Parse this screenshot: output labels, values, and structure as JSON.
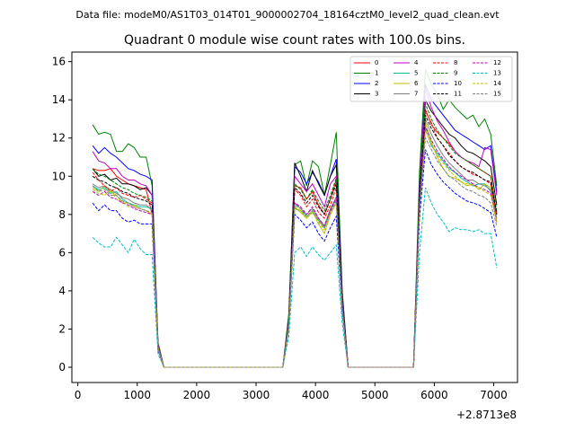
{
  "page": {
    "suptitle": "Data file: modeM0/AS1T03_014T01_9000002704_18164cztM0_level2_quad_clean.evt"
  },
  "chart_data": {
    "type": "line",
    "title": "Quadrant 0 module wise count rates with 100.0s bins.",
    "xlabel": "",
    "ylabel": "",
    "offset_label": "+2.8713e8",
    "xlim": [
      -100,
      7400
    ],
    "ylim": [
      -0.8,
      16.5
    ],
    "xticks": [
      0,
      1000,
      2000,
      3000,
      4000,
      5000,
      6000,
      7000
    ],
    "yticks": [
      0,
      2,
      4,
      6,
      8,
      10,
      12,
      14,
      16
    ],
    "legend_position": "upper-right",
    "legend_columns": 4,
    "x": [
      250,
      350,
      450,
      550,
      650,
      750,
      850,
      950,
      1050,
      1150,
      1250,
      1350,
      1450,
      1550,
      1650,
      1750,
      1850,
      1950,
      2050,
      2150,
      2250,
      2350,
      2450,
      2550,
      2650,
      2750,
      2850,
      2950,
      3050,
      3150,
      3250,
      3350,
      3450,
      3550,
      3650,
      3750,
      3850,
      3950,
      4050,
      4150,
      4250,
      4350,
      4450,
      4550,
      4650,
      4750,
      4850,
      4950,
      5050,
      5150,
      5250,
      5350,
      5450,
      5550,
      5650,
      5750,
      5850,
      5950,
      6050,
      6150,
      6250,
      6350,
      6450,
      6550,
      6650,
      6750,
      6850,
      6950,
      7050
    ],
    "series": [
      {
        "name": "0",
        "color": "#ff0000",
        "dash": "solid",
        "values": [
          10.4,
          10.3,
          10.3,
          10.4,
          10.0,
          9.8,
          9.6,
          9.5,
          9.4,
          9.3,
          8.0,
          1.0,
          0,
          0,
          0,
          0,
          0,
          0,
          0,
          0,
          0,
          0,
          0,
          0,
          0,
          0,
          0,
          0,
          0,
          0,
          0,
          0,
          0,
          2.3,
          9.5,
          9.4,
          8.8,
          9.2,
          8.5,
          8.0,
          8.8,
          9.8,
          3.5,
          0,
          0,
          0,
          0,
          0,
          0,
          0,
          0,
          0,
          0,
          0,
          0,
          9.0,
          13.5,
          12.7,
          12.3,
          12.0,
          11.7,
          11.3,
          11.0,
          10.8,
          10.6,
          10.4,
          10.2,
          10.0,
          8.0
        ]
      },
      {
        "name": "1",
        "color": "#008000",
        "dash": "solid",
        "values": [
          12.7,
          12.2,
          12.3,
          12.2,
          11.3,
          11.3,
          11.7,
          11.5,
          11.0,
          11.0,
          9.5,
          1.3,
          0,
          0,
          0,
          0,
          0,
          0,
          0,
          0,
          0,
          0,
          0,
          0,
          0,
          0,
          0,
          0,
          0,
          0,
          0,
          0,
          0,
          2.8,
          10.6,
          10.8,
          9.5,
          10.8,
          10.5,
          9.0,
          10.6,
          12.3,
          4.0,
          0,
          0,
          0,
          0,
          0,
          0,
          0,
          0,
          0,
          0,
          0,
          0,
          10.2,
          15.6,
          14.8,
          14.3,
          13.5,
          14.0,
          13.6,
          13.3,
          13.0,
          13.2,
          12.6,
          13.0,
          12.2,
          9.5
        ]
      },
      {
        "name": "2",
        "color": "#0000ff",
        "dash": "solid",
        "values": [
          11.6,
          11.2,
          11.5,
          11.2,
          11.0,
          10.7,
          10.4,
          10.3,
          10.1,
          10.0,
          9.8,
          1.2,
          0,
          0,
          0,
          0,
          0,
          0,
          0,
          0,
          0,
          0,
          0,
          0,
          0,
          0,
          0,
          0,
          0,
          0,
          0,
          0,
          0,
          2.5,
          10.5,
          10.2,
          9.6,
          10.2,
          9.7,
          9.0,
          10.0,
          10.9,
          3.9,
          0,
          0,
          0,
          0,
          0,
          0,
          0,
          0,
          0,
          0,
          0,
          0,
          9.5,
          14.8,
          14.0,
          13.6,
          13.2,
          12.8,
          12.4,
          12.2,
          12.0,
          11.8,
          11.6,
          11.4,
          11.6,
          9.2
        ]
      },
      {
        "name": "3",
        "color": "#000000",
        "dash": "solid",
        "values": [
          10.4,
          10.0,
          10.1,
          9.8,
          9.9,
          9.6,
          9.6,
          9.5,
          9.3,
          9.4,
          9.0,
          1.1,
          0,
          0,
          0,
          0,
          0,
          0,
          0,
          0,
          0,
          0,
          0,
          0,
          0,
          0,
          0,
          0,
          0,
          0,
          0,
          0,
          0,
          2.4,
          10.7,
          10.0,
          9.2,
          10.3,
          9.6,
          9.0,
          10.0,
          10.6,
          3.7,
          0,
          0,
          0,
          0,
          0,
          0,
          0,
          0,
          0,
          0,
          0,
          0,
          9.0,
          14.0,
          13.4,
          13.0,
          12.6,
          12.2,
          12.0,
          11.6,
          11.3,
          11.2,
          11.0,
          10.8,
          10.5,
          8.5
        ]
      },
      {
        "name": "4",
        "color": "#bf00bf",
        "dash": "solid",
        "values": [
          11.3,
          10.8,
          10.7,
          10.4,
          10.4,
          10.0,
          9.8,
          9.8,
          9.6,
          9.5,
          9.0,
          1.2,
          0,
          0,
          0,
          0,
          0,
          0,
          0,
          0,
          0,
          0,
          0,
          0,
          0,
          0,
          0,
          0,
          0,
          0,
          0,
          0,
          0,
          2.4,
          10.0,
          9.6,
          9.2,
          9.6,
          9.0,
          8.4,
          9.6,
          10.0,
          3.6,
          0,
          0,
          0,
          0,
          0,
          0,
          0,
          0,
          0,
          0,
          0,
          0,
          9.3,
          14.6,
          13.6,
          12.9,
          12.4,
          11.8,
          11.3,
          11.0,
          10.8,
          10.7,
          10.5,
          11.5,
          11.4,
          9.0
        ]
      },
      {
        "name": "5",
        "color": "#00bfa0",
        "dash": "solid",
        "values": [
          9.5,
          9.3,
          9.4,
          9.1,
          9.2,
          8.8,
          8.6,
          8.5,
          8.4,
          8.4,
          8.3,
          1.0,
          0,
          0,
          0,
          0,
          0,
          0,
          0,
          0,
          0,
          0,
          0,
          0,
          0,
          0,
          0,
          0,
          0,
          0,
          0,
          0,
          0,
          2.2,
          8.3,
          8.2,
          7.9,
          8.1,
          7.7,
          7.3,
          8.2,
          8.8,
          3.2,
          0,
          0,
          0,
          0,
          0,
          0,
          0,
          0,
          0,
          0,
          0,
          0,
          8.3,
          12.5,
          11.6,
          11.2,
          10.8,
          10.4,
          10.2,
          9.9,
          9.7,
          9.5,
          9.6,
          9.6,
          9.2,
          7.8
        ]
      },
      {
        "name": "6",
        "color": "#bfbf00",
        "dash": "solid",
        "values": [
          9.4,
          9.2,
          9.5,
          9.2,
          9.0,
          8.6,
          8.6,
          8.4,
          8.3,
          8.2,
          8.0,
          1.0,
          0,
          0,
          0,
          0,
          0,
          0,
          0,
          0,
          0,
          0,
          0,
          0,
          0,
          0,
          0,
          0,
          0,
          0,
          0,
          0,
          0,
          2.2,
          8.4,
          8.1,
          7.8,
          8.2,
          7.5,
          7.0,
          8.0,
          8.6,
          3.1,
          0,
          0,
          0,
          0,
          0,
          0,
          0,
          0,
          0,
          0,
          0,
          0,
          8.5,
          12.8,
          11.8,
          11.0,
          10.4,
          10.0,
          9.9,
          9.7,
          9.5,
          9.6,
          9.3,
          9.6,
          9.4,
          7.6
        ]
      },
      {
        "name": "7",
        "color": "#808080",
        "dash": "solid",
        "values": [
          9.6,
          9.4,
          9.5,
          9.3,
          9.1,
          8.9,
          8.8,
          8.6,
          8.5,
          8.5,
          8.2,
          1.0,
          0,
          0,
          0,
          0,
          0,
          0,
          0,
          0,
          0,
          0,
          0,
          0,
          0,
          0,
          0,
          0,
          0,
          0,
          0,
          0,
          0,
          2.2,
          8.6,
          8.3,
          8.0,
          8.3,
          7.8,
          7.4,
          8.3,
          8.9,
          3.2,
          0,
          0,
          0,
          0,
          0,
          0,
          0,
          0,
          0,
          0,
          0,
          0,
          8.6,
          13.0,
          12.2,
          11.6,
          11.1,
          10.7,
          10.4,
          10.1,
          9.8,
          9.8,
          9.6,
          9.5,
          9.3,
          7.8
        ]
      },
      {
        "name": "8",
        "color": "#ff0000",
        "dash": "dashed",
        "values": [
          10.2,
          9.8,
          9.5,
          9.2,
          9.4,
          9.1,
          9.0,
          8.9,
          9.0,
          8.8,
          8.6,
          1.1,
          0,
          0,
          0,
          0,
          0,
          0,
          0,
          0,
          0,
          0,
          0,
          0,
          0,
          0,
          0,
          0,
          0,
          0,
          0,
          0,
          0,
          2.3,
          9.3,
          9.0,
          8.4,
          8.8,
          8.1,
          7.8,
          8.5,
          9.4,
          3.4,
          0,
          0,
          0,
          0,
          0,
          0,
          0,
          0,
          0,
          0,
          0,
          0,
          8.8,
          13.4,
          12.8,
          12.0,
          11.6,
          11.2,
          10.8,
          10.5,
          10.3,
          10.1,
          10.0,
          9.8,
          9.6,
          8.0
        ]
      },
      {
        "name": "9",
        "color": "#008000",
        "dash": "dashed",
        "values": [
          10.4,
          10.1,
          10.0,
          9.8,
          9.6,
          9.4,
          9.3,
          9.1,
          9.0,
          8.9,
          8.7,
          1.1,
          0,
          0,
          0,
          0,
          0,
          0,
          0,
          0,
          0,
          0,
          0,
          0,
          0,
          0,
          0,
          0,
          0,
          0,
          0,
          0,
          0,
          2.4,
          9.6,
          9.3,
          8.8,
          9.3,
          8.7,
          8.2,
          9.0,
          9.9,
          3.5,
          0,
          0,
          0,
          0,
          0,
          0,
          0,
          0,
          0,
          0,
          0,
          0,
          9.1,
          13.8,
          13.0,
          12.4,
          12.0,
          11.6,
          11.2,
          11.0,
          10.8,
          10.6,
          10.4,
          10.2,
          10.0,
          8.2
        ]
      },
      {
        "name": "10",
        "color": "#0000ff",
        "dash": "dashed",
        "values": [
          8.6,
          8.2,
          8.5,
          8.2,
          8.2,
          7.8,
          7.6,
          7.7,
          7.5,
          7.5,
          7.5,
          0.9,
          0,
          0,
          0,
          0,
          0,
          0,
          0,
          0,
          0,
          0,
          0,
          0,
          0,
          0,
          0,
          0,
          0,
          0,
          0,
          0,
          0,
          2.0,
          8.0,
          7.7,
          7.3,
          7.6,
          7.0,
          6.6,
          7.3,
          7.9,
          2.9,
          0,
          0,
          0,
          0,
          0,
          0,
          0,
          0,
          0,
          0,
          0,
          0,
          7.8,
          11.4,
          10.6,
          10.1,
          9.7,
          9.4,
          9.1,
          8.9,
          8.7,
          8.6,
          8.5,
          8.3,
          8.1,
          6.8
        ]
      },
      {
        "name": "11",
        "color": "#000000",
        "dash": "dashed",
        "values": [
          10.0,
          9.8,
          9.7,
          9.5,
          9.4,
          9.2,
          9.1,
          8.9,
          8.8,
          8.7,
          8.5,
          1.0,
          0,
          0,
          0,
          0,
          0,
          0,
          0,
          0,
          0,
          0,
          0,
          0,
          0,
          0,
          0,
          0,
          0,
          0,
          0,
          0,
          0,
          2.3,
          9.4,
          9.1,
          8.6,
          9.0,
          8.4,
          8.0,
          8.8,
          9.6,
          3.4,
          0,
          0,
          0,
          0,
          0,
          0,
          0,
          0,
          0,
          0,
          0,
          0,
          8.9,
          13.2,
          12.5,
          12.0,
          11.6,
          11.1,
          10.8,
          10.5,
          10.3,
          10.2,
          10.0,
          9.8,
          9.7,
          8.0
        ]
      },
      {
        "name": "12",
        "color": "#bf00bf",
        "dash": "dashed",
        "values": [
          9.2,
          9.0,
          9.2,
          8.9,
          8.8,
          8.6,
          8.5,
          8.3,
          8.2,
          8.1,
          8.0,
          1.0,
          0,
          0,
          0,
          0,
          0,
          0,
          0,
          0,
          0,
          0,
          0,
          0,
          0,
          0,
          0,
          0,
          0,
          0,
          0,
          0,
          0,
          2.2,
          8.6,
          8.4,
          8.0,
          8.4,
          7.8,
          7.4,
          8.2,
          8.9,
          3.2,
          0,
          0,
          0,
          0,
          0,
          0,
          0,
          0,
          0,
          0,
          0,
          0,
          8.4,
          12.6,
          11.9,
          11.3,
          10.9,
          10.5,
          10.2,
          10.0,
          9.8,
          9.6,
          9.4,
          9.3,
          9.1,
          7.6
        ]
      },
      {
        "name": "13",
        "color": "#00bfbf",
        "dash": "dashed",
        "values": [
          6.8,
          6.5,
          6.3,
          6.3,
          6.8,
          6.4,
          6.0,
          6.7,
          6.2,
          5.9,
          5.9,
          0.7,
          0,
          0,
          0,
          0,
          0,
          0,
          0,
          0,
          0,
          0,
          0,
          0,
          0,
          0,
          0,
          0,
          0,
          0,
          0,
          0,
          0,
          1.6,
          6.0,
          6.3,
          5.8,
          6.3,
          5.9,
          5.6,
          6.0,
          6.4,
          2.3,
          0,
          0,
          0,
          0,
          0,
          0,
          0,
          0,
          0,
          0,
          0,
          0,
          6.0,
          9.4,
          8.6,
          8.0,
          7.6,
          7.1,
          7.3,
          7.2,
          7.2,
          7.1,
          7.2,
          7.0,
          7.0,
          5.2
        ]
      },
      {
        "name": "14",
        "color": "#bfbf00",
        "dash": "dashed",
        "values": [
          9.3,
          9.1,
          9.0,
          9.3,
          8.8,
          8.7,
          8.4,
          8.5,
          8.3,
          8.2,
          8.0,
          1.0,
          0,
          0,
          0,
          0,
          0,
          0,
          0,
          0,
          0,
          0,
          0,
          0,
          0,
          0,
          0,
          0,
          0,
          0,
          0,
          0,
          0,
          2.1,
          8.4,
          8.2,
          7.8,
          8.1,
          7.6,
          7.2,
          8.0,
          8.6,
          3.1,
          0,
          0,
          0,
          0,
          0,
          0,
          0,
          0,
          0,
          0,
          0,
          0,
          8.3,
          12.4,
          11.7,
          11.1,
          10.7,
          10.3,
          10.0,
          9.7,
          9.6,
          9.5,
          9.4,
          9.2,
          9.0,
          7.6
        ]
      },
      {
        "name": "15",
        "color": "#808080",
        "dash": "dashed",
        "values": [
          9.5,
          9.2,
          9.3,
          9.0,
          9.0,
          8.7,
          8.6,
          8.4,
          8.3,
          8.2,
          8.1,
          1.0,
          0,
          0,
          0,
          0,
          0,
          0,
          0,
          0,
          0,
          0,
          0,
          0,
          0,
          0,
          0,
          0,
          0,
          0,
          0,
          0,
          0,
          2.2,
          8.5,
          8.3,
          7.9,
          8.2,
          7.7,
          7.3,
          8.1,
          8.7,
          3.1,
          0,
          0,
          0,
          0,
          0,
          0,
          0,
          0,
          0,
          0,
          0,
          0,
          8.4,
          12.0,
          11.4,
          10.8,
          10.4,
          10.0,
          9.8,
          9.5,
          9.3,
          9.2,
          9.0,
          8.9,
          8.6,
          7.4
        ]
      }
    ]
  }
}
